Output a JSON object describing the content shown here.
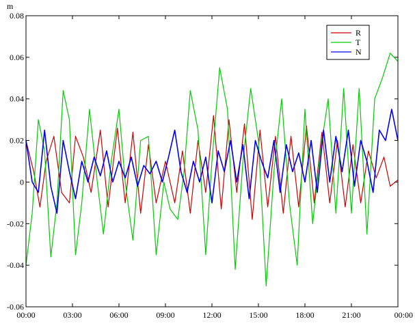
{
  "chart_data": {
    "type": "line",
    "title": "",
    "xlabel": "",
    "ylabel": "",
    "y_unit": "m",
    "xlim": [
      0,
      24
    ],
    "ylim": [
      -0.06,
      0.08
    ],
    "grid": false,
    "legend_position": "top-right",
    "x_tick_labels": [
      "00:00",
      "03:00",
      "06:00",
      "09:00",
      "12:00",
      "15:00",
      "18:00",
      "21:00",
      "00:00"
    ],
    "y_tick_labels": [
      "0.08",
      "0.06",
      "0.04",
      "0.02",
      "0",
      "-0.02",
      "-0.04",
      "-0.06"
    ],
    "y_ticks": [
      0.08,
      0.06,
      0.04,
      0.02,
      0,
      -0.02,
      -0.04,
      -0.06
    ],
    "series": [
      {
        "name": "R",
        "color": "#cc0000",
        "x": [
          0,
          0.5,
          0.9,
          1.3,
          1.8,
          2.3,
          2.8,
          3.2,
          3.7,
          4.2,
          4.8,
          5.3,
          5.9,
          6.4,
          6.9,
          7.4,
          7.9,
          8.4,
          9.0,
          9.6,
          10.1,
          10.6,
          11.1,
          11.6,
          12.1,
          12.6,
          13.1,
          13.6,
          14.1,
          14.6,
          15.1,
          15.6,
          16.1,
          16.6,
          17.1,
          17.6,
          18.1,
          18.6,
          19.1,
          19.6,
          20.1,
          20.6,
          21.1,
          21.6,
          22.1,
          22.6,
          23.1,
          23.5,
          24.0
        ],
        "y": [
          0.02,
          0.005,
          -0.012,
          0.01,
          0.022,
          -0.005,
          -0.01,
          0.022,
          0.012,
          -0.005,
          0.025,
          -0.012,
          0.026,
          -0.01,
          0.024,
          -0.015,
          0.018,
          -0.01,
          0.01,
          -0.01,
          0.015,
          -0.015,
          0.02,
          -0.005,
          0.032,
          -0.013,
          0.03,
          -0.005,
          0.028,
          -0.018,
          0.025,
          -0.012,
          0.022,
          -0.015,
          0.022,
          -0.012,
          0.027,
          -0.01,
          0.024,
          -0.01,
          0.02,
          -0.012,
          0.018,
          -0.01,
          0.015,
          0.002,
          0.012,
          -0.002,
          0.001
        ]
      },
      {
        "name": "T",
        "color": "#00cc00",
        "x": [
          0,
          0.4,
          0.8,
          1.2,
          1.6,
          2.0,
          2.4,
          2.8,
          3.2,
          3.6,
          4.1,
          4.6,
          5.0,
          5.5,
          6.0,
          6.4,
          6.9,
          7.4,
          7.9,
          8.4,
          8.9,
          9.3,
          9.8,
          10.2,
          10.6,
          11.1,
          11.6,
          12.0,
          12.5,
          13.0,
          13.5,
          14.0,
          14.5,
          15.0,
          15.5,
          16.0,
          16.5,
          17.0,
          17.5,
          18.0,
          18.5,
          19.0,
          19.5,
          20.0,
          20.5,
          21.0,
          21.5,
          22.0,
          22.5,
          23.0,
          23.5,
          24.0
        ],
        "y": [
          -0.04,
          -0.015,
          0.03,
          0.015,
          -0.036,
          -0.01,
          0.044,
          0.03,
          -0.035,
          -0.01,
          0.035,
          0.0,
          -0.025,
          0.01,
          0.035,
          0.0,
          -0.028,
          0.02,
          0.022,
          -0.035,
          0.0,
          -0.013,
          -0.018,
          0.005,
          0.044,
          0.025,
          -0.035,
          0.01,
          0.055,
          0.035,
          -0.042,
          0.01,
          0.045,
          0.02,
          -0.05,
          0.005,
          0.04,
          -0.01,
          -0.04,
          0.035,
          -0.02,
          0.015,
          0.04,
          -0.015,
          0.045,
          -0.015,
          0.045,
          -0.025,
          0.04,
          0.05,
          0.062,
          0.058
        ]
      },
      {
        "name": "N",
        "color": "#0000ee",
        "x": [
          0,
          0.4,
          0.8,
          1.2,
          1.6,
          2.0,
          2.4,
          2.8,
          3.2,
          3.6,
          4.0,
          4.4,
          4.8,
          5.2,
          5.6,
          6.0,
          6.4,
          6.8,
          7.2,
          7.6,
          8.0,
          8.4,
          8.8,
          9.2,
          9.6,
          10.0,
          10.4,
          10.8,
          11.2,
          11.6,
          12.0,
          12.4,
          12.8,
          13.2,
          13.6,
          14.0,
          14.4,
          14.8,
          15.2,
          15.6,
          16.0,
          16.4,
          16.8,
          17.2,
          17.6,
          18.0,
          18.4,
          18.8,
          19.2,
          19.6,
          20.0,
          20.4,
          20.8,
          21.2,
          21.6,
          22.0,
          22.4,
          22.8,
          23.2,
          23.6,
          24.0
        ],
        "y": [
          0.02,
          0.0,
          -0.005,
          0.025,
          -0.002,
          -0.015,
          0.02,
          0.005,
          -0.008,
          0.01,
          0.0,
          0.012,
          0.003,
          0.015,
          0.0,
          0.01,
          0.002,
          0.012,
          -0.002,
          0.008,
          0.004,
          0.01,
          0.0,
          0.012,
          0.025,
          0.005,
          -0.005,
          0.01,
          0.0,
          0.012,
          -0.01,
          0.015,
          0.005,
          0.02,
          0.0,
          0.018,
          -0.008,
          0.02,
          0.01,
          0.002,
          0.02,
          -0.005,
          0.018,
          0.005,
          0.014,
          0.0,
          0.02,
          -0.005,
          0.025,
          0.0,
          0.022,
          0.005,
          0.025,
          -0.002,
          0.02,
          0.01,
          -0.005,
          0.025,
          0.02,
          0.035,
          0.02
        ]
      }
    ]
  }
}
